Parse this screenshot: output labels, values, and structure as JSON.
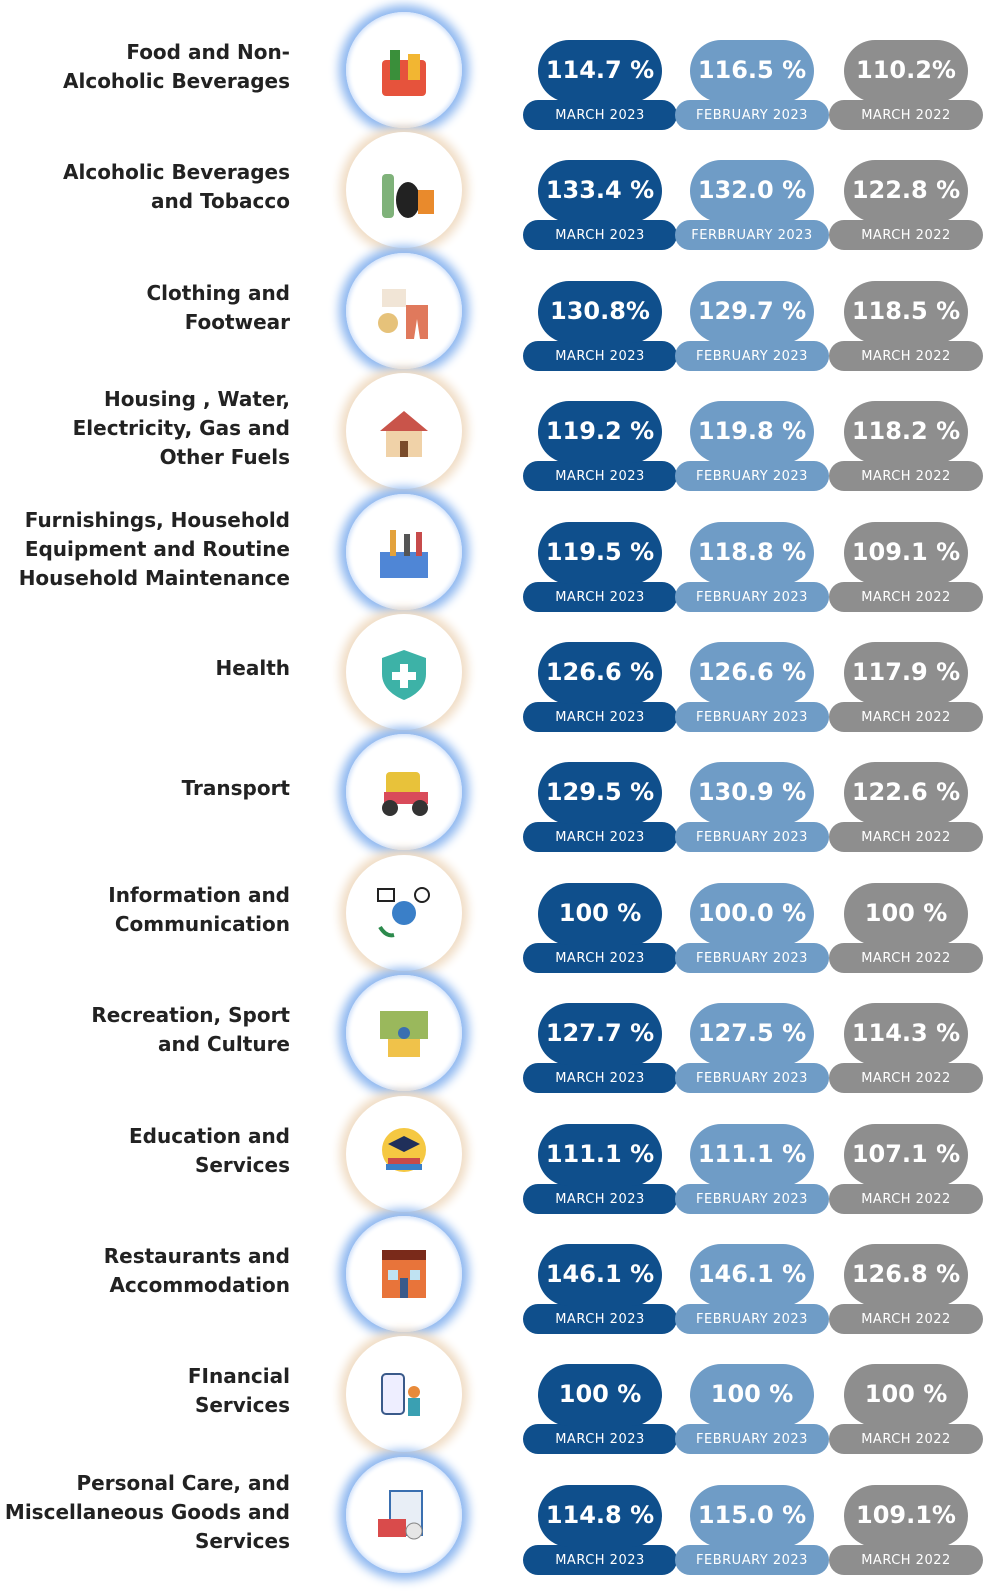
{
  "rows": [
    {
      "label": [
        "Food and Non-",
        "Alcoholic Beverages"
      ],
      "badges": [
        {
          "value": "114.7 %",
          "period": "MARCH 2023"
        },
        {
          "value": "116.5 %",
          "period": "FEBRUARY 2023"
        },
        {
          "value": "110.2%",
          "period": "MARCH 2022"
        }
      ]
    },
    {
      "label": [
        "Alcoholic Beverages",
        "and Tobacco"
      ],
      "badges": [
        {
          "value": "133.4 %",
          "period": "MARCH 2023"
        },
        {
          "value": "132.0 %",
          "period": "FERBRUARY 2023"
        },
        {
          "value": "122.8 %",
          "period": "MARCH 2022"
        }
      ]
    },
    {
      "label": [
        "Clothing and",
        "Footwear"
      ],
      "badges": [
        {
          "value": "130.8%",
          "period": "MARCH 2023"
        },
        {
          "value": "129.7 %",
          "period": "FEBRUARY 2023"
        },
        {
          "value": "118.5 %",
          "period": "MARCH 2022"
        }
      ]
    },
    {
      "label": [
        "Housing , Water,",
        "Electricity, Gas and",
        "Other Fuels"
      ],
      "badges": [
        {
          "value": "119.2 %",
          "period": "MARCH 2023"
        },
        {
          "value": "119.8 %",
          "period": "FEBRUARY 2023"
        },
        {
          "value": "118.2 %",
          "period": "MARCH 2022"
        }
      ]
    },
    {
      "label": [
        "Furnishings, Household",
        "Equipment and Routine",
        "Household Maintenance"
      ],
      "badges": [
        {
          "value": "119.5 %",
          "period": "MARCH 2023"
        },
        {
          "value": "118.8 %",
          "period": "FEBRUARY 2023"
        },
        {
          "value": "109.1 %",
          "period": "MARCH 2022"
        }
      ]
    },
    {
      "label": [
        "Health"
      ],
      "badges": [
        {
          "value": "126.6 %",
          "period": "MARCH 2023"
        },
        {
          "value": "126.6 %",
          "period": "FEBRUARY 2023"
        },
        {
          "value": "117.9 %",
          "period": "MARCH 2022"
        }
      ]
    },
    {
      "label": [
        "Transport"
      ],
      "badges": [
        {
          "value": "129.5 %",
          "period": "MARCH 2023"
        },
        {
          "value": "130.9 %",
          "period": "FEBRUARY 2023"
        },
        {
          "value": "122.6 %",
          "period": "MARCH 2022"
        }
      ]
    },
    {
      "label": [
        "Information and",
        "Communication"
      ],
      "badges": [
        {
          "value": "100 %",
          "period": "MARCH 2023"
        },
        {
          "value": "100.0 %",
          "period": "FEBRUARY 2023"
        },
        {
          "value": "100 %",
          "period": "MARCH 2022"
        }
      ]
    },
    {
      "label": [
        "Recreation, Sport",
        "and Culture"
      ],
      "badges": [
        {
          "value": "127.7 %",
          "period": "MARCH 2023"
        },
        {
          "value": "127.5 %",
          "period": "FEBRUARY 2023"
        },
        {
          "value": "114.3 %",
          "period": "MARCH 2022"
        }
      ]
    },
    {
      "label": [
        "Education and",
        "Services"
      ],
      "badges": [
        {
          "value": "111.1 %",
          "period": "MARCH 2023"
        },
        {
          "value": "111.1 %",
          "period": "FEBRUARY 2023"
        },
        {
          "value": "107.1 %",
          "period": "MARCH 2022"
        }
      ]
    },
    {
      "label": [
        "Restaurants and",
        "Accommodation"
      ],
      "badges": [
        {
          "value": "146.1 %",
          "period": "MARCH 2023"
        },
        {
          "value": "146.1 %",
          "period": "FEBRUARY 2023"
        },
        {
          "value": "126.8 %",
          "period": "MARCH 2022"
        }
      ]
    },
    {
      "label": [
        "FInancial",
        "Services"
      ],
      "badges": [
        {
          "value": "100 %",
          "period": "MARCH 2023"
        },
        {
          "value": "100 %",
          "period": "FEBRUARY 2023"
        },
        {
          "value": "100 %",
          "period": "MARCH 2022"
        }
      ]
    },
    {
      "label": [
        "Personal Care, and",
        "Miscellaneous Goods and",
        "Services"
      ],
      "badges": [
        {
          "value": "114.8 %",
          "period": "MARCH 2023"
        },
        {
          "value": "115.0 %",
          "period": "FEBRUARY 2023"
        },
        {
          "value": "109.1%",
          "period": "MARCH 2022"
        }
      ]
    }
  ]
}
